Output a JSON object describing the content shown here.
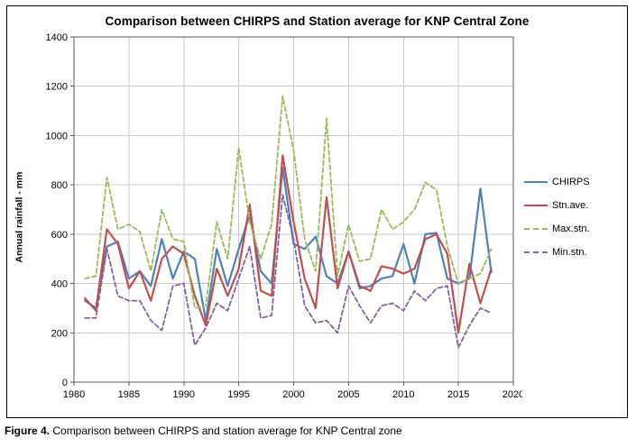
{
  "figure": {
    "caption_label": "Figure 4.",
    "caption_text": " Comparison between CHIRPS and station average for KNP Central zone"
  },
  "chart_data": {
    "type": "line",
    "title": "Comparison between CHIRPS and Station average for KNP Central Zone",
    "xlabel": "",
    "ylabel": "Annual rainfall - mm",
    "xlim": [
      1980,
      2020
    ],
    "ylim": [
      0,
      1400
    ],
    "x_ticks": [
      1980,
      1985,
      1990,
      1995,
      2000,
      2005,
      2010,
      2015,
      2020
    ],
    "y_ticks": [
      0,
      200,
      400,
      600,
      800,
      1000,
      1200,
      1400
    ],
    "grid": true,
    "legend_position": "right",
    "x": [
      1981,
      1982,
      1983,
      1984,
      1985,
      1986,
      1987,
      1988,
      1989,
      1990,
      1991,
      1992,
      1993,
      1994,
      1995,
      1996,
      1997,
      1998,
      1999,
      2000,
      2001,
      2002,
      2003,
      2004,
      2005,
      2006,
      2007,
      2008,
      2009,
      2010,
      2011,
      2012,
      2013,
      2014,
      2015,
      2016,
      2017,
      2018
    ],
    "series": [
      {
        "name": "CHIRPS",
        "color": "#4F81BD",
        "dash": "solid",
        "values": [
          330,
          300,
          550,
          570,
          420,
          450,
          390,
          580,
          420,
          530,
          500,
          250,
          540,
          390,
          540,
          680,
          450,
          400,
          870,
          560,
          540,
          590,
          430,
          400,
          530,
          380,
          390,
          420,
          430,
          560,
          400,
          600,
          605,
          420,
          400,
          420,
          785,
          445
        ]
      },
      {
        "name": "Stn.ave.",
        "color": "#C0504D",
        "dash": "solid",
        "values": [
          340,
          290,
          620,
          560,
          380,
          450,
          330,
          500,
          550,
          520,
          350,
          230,
          460,
          350,
          460,
          720,
          370,
          350,
          920,
          650,
          420,
          300,
          750,
          380,
          530,
          390,
          370,
          470,
          460,
          440,
          460,
          580,
          600,
          520,
          200,
          480,
          320,
          460
        ]
      },
      {
        "name": "Max.stn.",
        "color": "#9BBB59",
        "dash": "dashed",
        "values": [
          420,
          430,
          830,
          620,
          640,
          610,
          450,
          700,
          580,
          570,
          300,
          310,
          650,
          500,
          950,
          650,
          500,
          640,
          1160,
          940,
          580,
          450,
          1070,
          430,
          640,
          490,
          500,
          700,
          620,
          650,
          700,
          810,
          780,
          550,
          400,
          420,
          440,
          540
        ]
      },
      {
        "name": "Min.stn.",
        "color": "#8064A2",
        "dash": "dashed",
        "values": [
          260,
          260,
          540,
          350,
          330,
          330,
          250,
          210,
          390,
          400,
          150,
          220,
          320,
          290,
          420,
          550,
          260,
          270,
          760,
          580,
          310,
          240,
          250,
          200,
          390,
          310,
          240,
          310,
          320,
          290,
          370,
          330,
          380,
          390,
          140,
          230,
          300,
          280
        ]
      }
    ]
  }
}
